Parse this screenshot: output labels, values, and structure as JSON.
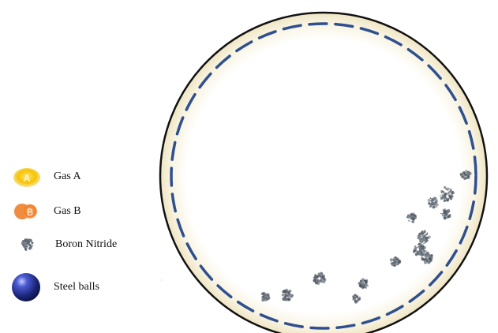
{
  "legend": {
    "items": [
      {
        "key": "gas-a",
        "label": "Gas A",
        "icon_letter": "A",
        "color": "#f2c200"
      },
      {
        "key": "gas-b",
        "label": "Gas B",
        "icon_letter": "B",
        "color": "#f08a33"
      },
      {
        "key": "boron-nitride",
        "label": "Boron Nitride",
        "color": "#5a6470"
      },
      {
        "key": "steel-balls",
        "label": "Steel balls",
        "color": "#1f2a7a"
      }
    ]
  },
  "vessel": {
    "wall_color": "#f3ecd2",
    "rim_color": "#111111",
    "dash_color": "#2f4f8f"
  }
}
